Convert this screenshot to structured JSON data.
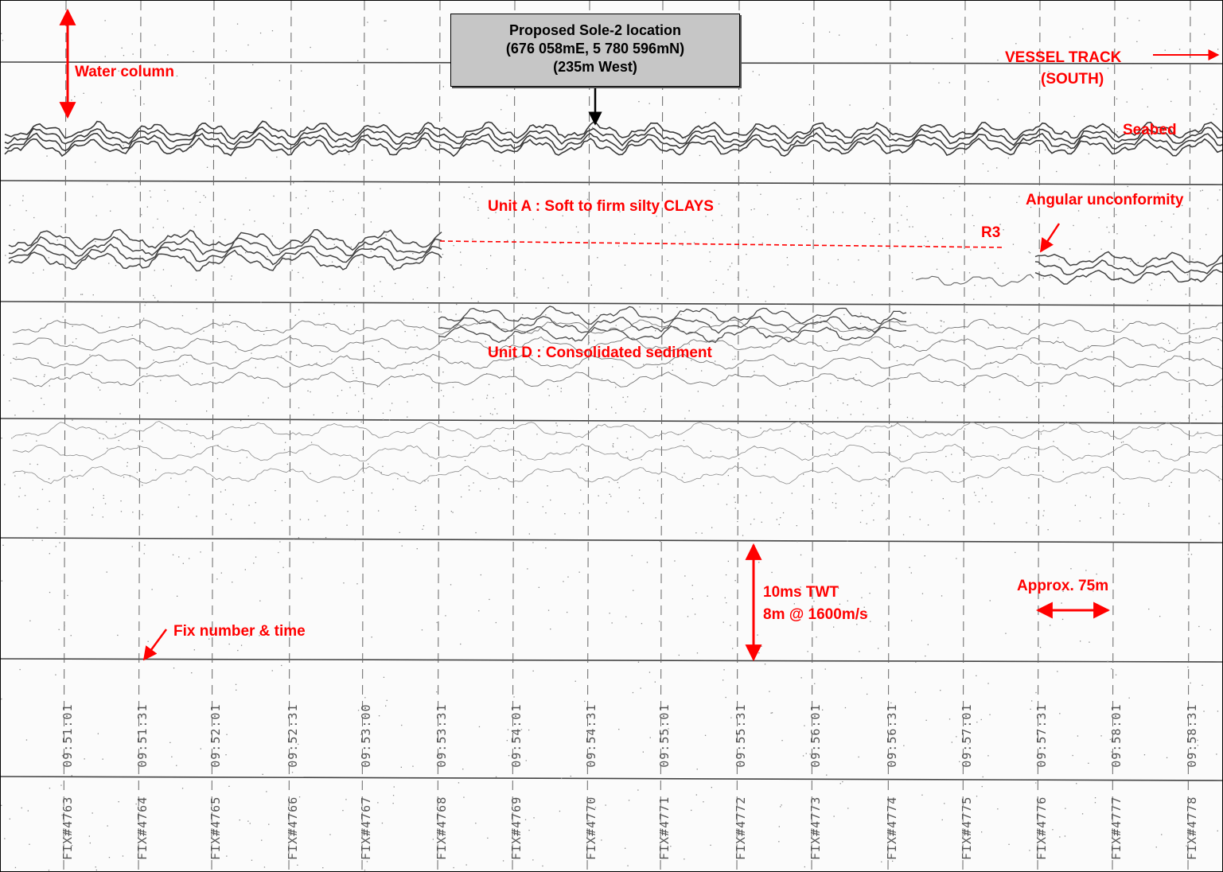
{
  "callout": {
    "line1": "Proposed Sole-2 location",
    "line2": "(676 058mE, 5 780 596mN)",
    "line3": "(235m West)"
  },
  "annotations": {
    "water_column": "Water column",
    "vessel_track_1": "VESSEL TRACK",
    "vessel_track_2": "(SOUTH)",
    "seabed": "Seabed",
    "unit_a": "Unit A : Soft to firm silty CLAYS",
    "angular_unconformity": "Angular unconformity",
    "r3": "R3",
    "unit_d": "Unit D : Consolidated sediment",
    "twt_1": "10ms TWT",
    "twt_2": "8m @ 1600m/s",
    "approx": "Approx. 75m",
    "fix_number_time": "Fix number & time"
  },
  "fixes": [
    {
      "id": "FIX#4763",
      "time": "09:51:01"
    },
    {
      "id": "FIX#4764",
      "time": "09:51:31"
    },
    {
      "id": "FIX#4765",
      "time": "09:52:01"
    },
    {
      "id": "FIX#4766",
      "time": "09:52:31"
    },
    {
      "id": "FIX#4767",
      "time": "09:53:00"
    },
    {
      "id": "FIX#4768",
      "time": "09:53:31"
    },
    {
      "id": "FIX#4769",
      "time": "09:54:01"
    },
    {
      "id": "FIX#4770",
      "time": "09:54:31"
    },
    {
      "id": "FIX#4771",
      "time": "09:55:01"
    },
    {
      "id": "FIX#4772",
      "time": "09:55:31"
    },
    {
      "id": "FIX#4773",
      "time": "09:56:01"
    },
    {
      "id": "FIX#4774",
      "time": "09:56:31"
    },
    {
      "id": "FIX#4775",
      "time": "09:57:01"
    },
    {
      "id": "FIX#4776",
      "time": "09:57:31"
    },
    {
      "id": "FIX#4777",
      "time": "09:58:01"
    },
    {
      "id": "FIX#4778",
      "time": "09:58:31"
    }
  ],
  "colors": {
    "annotation": "#ff0000",
    "callout_fill": "#c6c6c6",
    "trace": "#3a3a3a"
  }
}
